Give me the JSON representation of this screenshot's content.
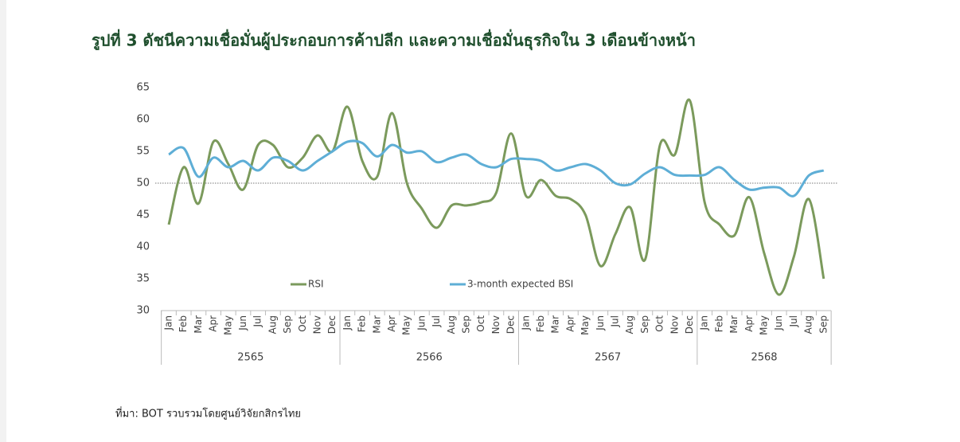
{
  "chart_data": {
    "type": "line",
    "title": "รูปที่ 3 ดัชนีความเชื่อมั่นผู้ประกอบการค้าปลีก และความเชื่อมั่นธุรกิจใน 3 เดือนข้างหน้า",
    "source": "ที่มา: BOT รวบรวมโดยศูนย์วิจัยกสิกรไทย",
    "categories": [
      "Jan",
      "Feb",
      "Mar",
      "Apr",
      "May",
      "Jun",
      "Jul",
      "Aug",
      "Sep",
      "Oct",
      "Nov",
      "Dec",
      "Jan",
      "Feb",
      "Mar",
      "Apr",
      "May",
      "Jun",
      "Jul",
      "Aug",
      "Sep",
      "Oct",
      "Nov",
      "Dec",
      "Jan",
      "Feb",
      "Mar",
      "Apr",
      "May",
      "Jun",
      "Jul",
      "Aug",
      "Sep",
      "Oct",
      "Nov",
      "Dec",
      "Jan",
      "Feb",
      "Mar",
      "Apr",
      "May",
      "Jun",
      "Jul",
      "Aug",
      "Sep"
    ],
    "groups": [
      "2565",
      "2566",
      "2567",
      "2568"
    ],
    "series": [
      {
        "name": "RSI",
        "color": "#7b9a5c",
        "values": [
          43.5,
          52.5,
          46.8,
          56.5,
          53,
          49,
          56,
          56,
          52.5,
          54,
          57.5,
          55,
          62,
          53.5,
          51,
          61,
          50,
          46,
          43,
          46.5,
          46.5,
          47,
          48.5,
          57.8,
          48,
          50.5,
          48,
          47.5,
          45,
          37,
          42,
          46.2,
          38,
          56,
          54.5,
          63,
          47,
          43.5,
          41.8,
          47.8,
          39,
          32.5,
          38.5,
          47.5,
          35
        ]
      },
      {
        "name": "3-month expected BSI",
        "color": "#5eaed6",
        "values": [
          54.5,
          55.5,
          51,
          54,
          52.5,
          53.5,
          52,
          54,
          53.5,
          52,
          53.5,
          55,
          56.5,
          56.3,
          54.2,
          56,
          54.8,
          55,
          53.3,
          54,
          54.5,
          53,
          52.5,
          53.8,
          53.8,
          53.5,
          52,
          52.5,
          53,
          52,
          50,
          49.8,
          51.5,
          52.5,
          51.3,
          51.2,
          51.3,
          52.5,
          50.5,
          49,
          49.3,
          49.3,
          48,
          51.2,
          52
        ]
      }
    ],
    "reference_line": 50,
    "ylim": [
      30,
      65
    ],
    "yticks": [
      30,
      35,
      40,
      45,
      50,
      55,
      60,
      65
    ],
    "legend": "lower center"
  }
}
